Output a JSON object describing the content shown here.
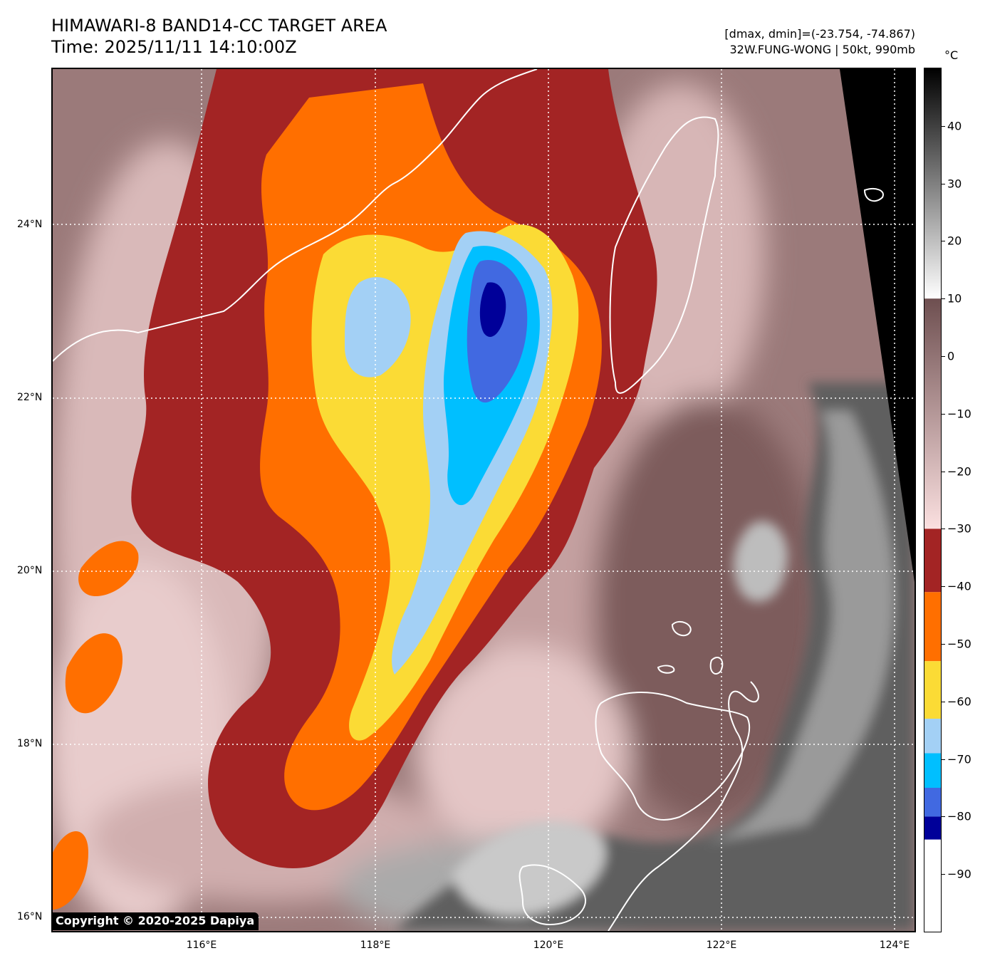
{
  "header": {
    "title_line1": "HIMAWARI-8 BAND14-CC TARGET AREA",
    "title_line2": "Time: 2025/11/11 14:10:00Z",
    "range_text": "[dmax, dmin]=(-23.754, -74.867)",
    "storm_text": "32W.FUNG-WONG | 50kt, 990mb"
  },
  "colorbar": {
    "unit": "°C",
    "ticks": [
      "40",
      "30",
      "20",
      "10",
      "0",
      "−10",
      "−20",
      "−30",
      "−40",
      "−50",
      "−60",
      "−70",
      "−80",
      "−90"
    ],
    "tick_values": [
      40,
      30,
      20,
      10,
      0,
      -10,
      -20,
      -30,
      -40,
      -50,
      -60,
      -70,
      -80,
      -90
    ],
    "range": [
      -100,
      50
    ],
    "segments": [
      {
        "from": 50,
        "to": 10,
        "colors": [
          "#000000",
          "#ffffff"
        ]
      },
      {
        "from": 10,
        "to": -30,
        "colors": [
          "#6e4f50",
          "#fbe0e0"
        ]
      },
      {
        "from": -30,
        "to": -41,
        "color": "#a32424"
      },
      {
        "from": -41,
        "to": -53,
        "color": "#ff6f00"
      },
      {
        "from": -53,
        "to": -63,
        "color": "#fbdb35"
      },
      {
        "from": -63,
        "to": -69,
        "color": "#a3d0f5"
      },
      {
        "from": -69,
        "to": -75,
        "color": "#00bfff"
      },
      {
        "from": -75,
        "to": -80,
        "color": "#4169e1"
      },
      {
        "from": -80,
        "to": -84,
        "color": "#000099"
      },
      {
        "from": -84,
        "to": -100,
        "color": "#ffffff"
      }
    ]
  },
  "map": {
    "lat_labels": [
      "24°N",
      "22°N",
      "20°N",
      "18°N",
      "16°N"
    ],
    "lat_values": [
      24,
      22,
      20,
      18,
      16
    ],
    "lon_labels": [
      "116°E",
      "118°E",
      "120°E",
      "122°E",
      "124°E"
    ],
    "lon_values": [
      116,
      118,
      120,
      122,
      124
    ],
    "extent": {
      "lon_min": 114.27,
      "lon_max": 124.23,
      "lat_min": 15.8,
      "lat_max": 25.78
    }
  },
  "copyright": "Copyright © 2020-2025 Dapiya"
}
